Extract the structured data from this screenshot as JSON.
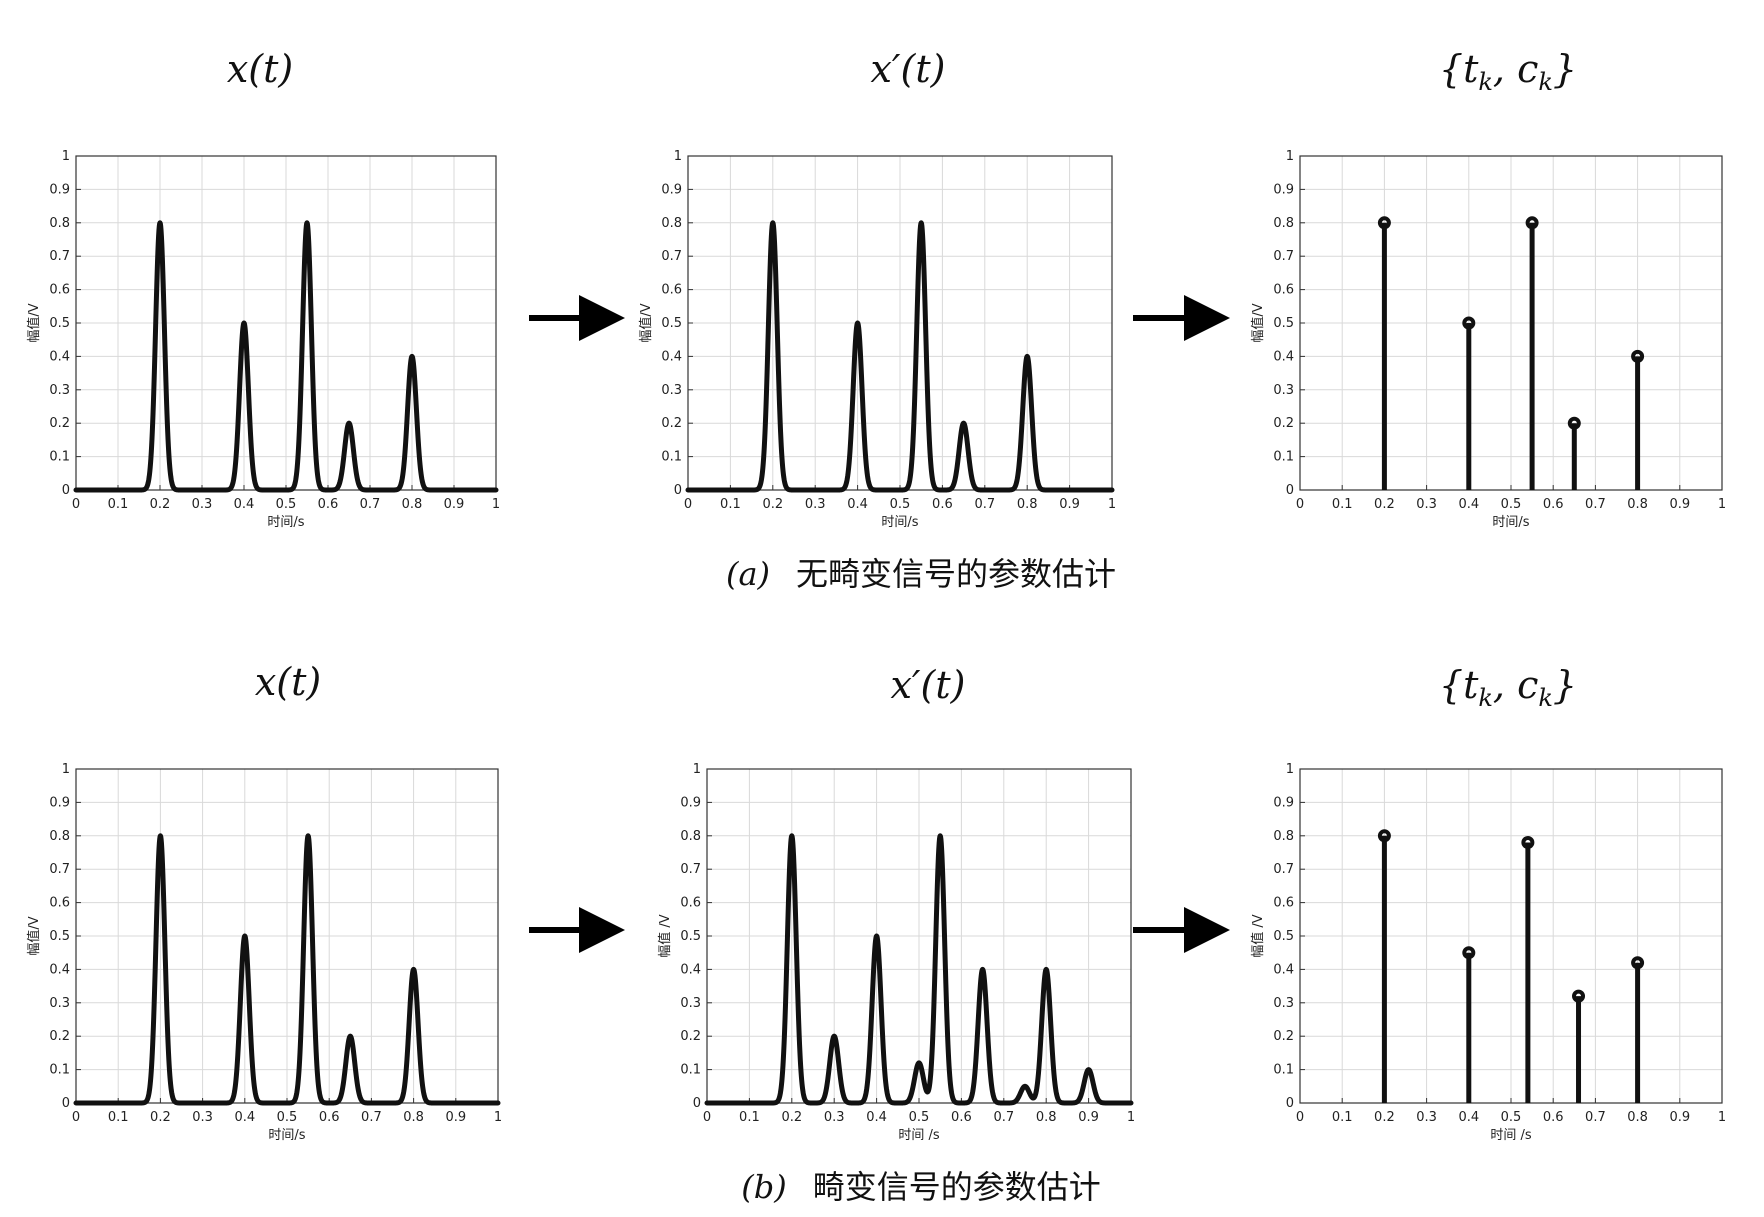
{
  "rows": [
    {
      "caption_label": "(a)",
      "caption_text": "无畸变信号的参数估计",
      "panels": [
        {
          "title": "x(t)",
          "ylabel": "幅值/V",
          "xlabel": "时间/s"
        },
        {
          "title": "x′(t)",
          "ylabel": "幅值/V",
          "xlabel": "时间/s"
        },
        {
          "title": "{t_k, c_k}",
          "ylabel": "幅值/V",
          "xlabel": "时间/s"
        }
      ]
    },
    {
      "caption_label": "(b)",
      "caption_text": "畸变信号的参数估计",
      "panels": [
        {
          "title": "x(t)",
          "ylabel": "幅值/V",
          "xlabel": "时间/s"
        },
        {
          "title": "x′(t)",
          "ylabel": "幅值 /V",
          "xlabel": "时间 /s"
        },
        {
          "title": "{t_k, c_k}",
          "ylabel": "幅值 /V",
          "xlabel": "时间 /s"
        }
      ]
    }
  ],
  "chart_data": [
    {
      "type": "line",
      "title": "x(t)",
      "xlabel": "时间/s",
      "ylabel": "幅值/V",
      "xlim": [
        0,
        1
      ],
      "ylim": [
        0,
        1
      ],
      "x_ticks": [
        0,
        0.1,
        0.2,
        0.3,
        0.4,
        0.5,
        0.6,
        0.7,
        0.8,
        0.9,
        1
      ],
      "y_ticks": [
        0,
        0.1,
        0.2,
        0.3,
        0.4,
        0.5,
        0.6,
        0.7,
        0.8,
        0.9,
        1
      ],
      "grid": true,
      "pulses": [
        {
          "t": 0.2,
          "c": 0.8
        },
        {
          "t": 0.4,
          "c": 0.5
        },
        {
          "t": 0.55,
          "c": 0.8
        },
        {
          "t": 0.65,
          "c": 0.2
        },
        {
          "t": 0.8,
          "c": 0.4
        }
      ]
    },
    {
      "type": "line",
      "title": "x′(t)",
      "xlabel": "时间/s",
      "ylabel": "幅值/V",
      "xlim": [
        0,
        1
      ],
      "ylim": [
        0,
        1
      ],
      "x_ticks": [
        0,
        0.1,
        0.2,
        0.3,
        0.4,
        0.5,
        0.6,
        0.7,
        0.8,
        0.9,
        1
      ],
      "y_ticks": [
        0,
        0.1,
        0.2,
        0.3,
        0.4,
        0.5,
        0.6,
        0.7,
        0.8,
        0.9,
        1
      ],
      "grid": true,
      "pulses": [
        {
          "t": 0.2,
          "c": 0.8
        },
        {
          "t": 0.4,
          "c": 0.5
        },
        {
          "t": 0.55,
          "c": 0.8
        },
        {
          "t": 0.65,
          "c": 0.2
        },
        {
          "t": 0.8,
          "c": 0.4
        }
      ]
    },
    {
      "type": "stem",
      "title": "{t_k, c_k}",
      "xlabel": "时间/s",
      "ylabel": "幅值/V",
      "xlim": [
        0,
        1
      ],
      "ylim": [
        0,
        1
      ],
      "x_ticks": [
        0,
        0.1,
        0.2,
        0.3,
        0.4,
        0.5,
        0.6,
        0.7,
        0.8,
        0.9,
        1
      ],
      "y_ticks": [
        0,
        0.1,
        0.2,
        0.3,
        0.4,
        0.5,
        0.6,
        0.7,
        0.8,
        0.9,
        1
      ],
      "grid": true,
      "points": [
        {
          "t": 0.2,
          "c": 0.8
        },
        {
          "t": 0.4,
          "c": 0.5
        },
        {
          "t": 0.55,
          "c": 0.8
        },
        {
          "t": 0.65,
          "c": 0.2
        },
        {
          "t": 0.8,
          "c": 0.4
        }
      ]
    },
    {
      "type": "line",
      "title": "x(t)",
      "xlabel": "时间/s",
      "ylabel": "幅值/V",
      "xlim": [
        0,
        1
      ],
      "ylim": [
        0,
        1
      ],
      "x_ticks": [
        0,
        0.1,
        0.2,
        0.3,
        0.4,
        0.5,
        0.6,
        0.7,
        0.8,
        0.9,
        1
      ],
      "y_ticks": [
        0,
        0.1,
        0.2,
        0.3,
        0.4,
        0.5,
        0.6,
        0.7,
        0.8,
        0.9,
        1
      ],
      "grid": true,
      "pulses": [
        {
          "t": 0.2,
          "c": 0.8
        },
        {
          "t": 0.4,
          "c": 0.5
        },
        {
          "t": 0.55,
          "c": 0.8
        },
        {
          "t": 0.65,
          "c": 0.2
        },
        {
          "t": 0.8,
          "c": 0.4
        }
      ]
    },
    {
      "type": "line",
      "title": "x′(t)",
      "xlabel": "时间 /s",
      "ylabel": "幅值 /V",
      "xlim": [
        0,
        1
      ],
      "ylim": [
        0,
        1
      ],
      "x_ticks": [
        0,
        0.1,
        0.2,
        0.3,
        0.4,
        0.5,
        0.6,
        0.7,
        0.8,
        0.9,
        1
      ],
      "y_ticks": [
        0,
        0.1,
        0.2,
        0.3,
        0.4,
        0.5,
        0.6,
        0.7,
        0.8,
        0.9,
        1
      ],
      "grid": true,
      "pulses": [
        {
          "t": 0.2,
          "c": 0.8
        },
        {
          "t": 0.3,
          "c": 0.2
        },
        {
          "t": 0.4,
          "c": 0.5
        },
        {
          "t": 0.5,
          "c": 0.12
        },
        {
          "t": 0.55,
          "c": 0.8
        },
        {
          "t": 0.65,
          "c": 0.4
        },
        {
          "t": 0.75,
          "c": 0.05
        },
        {
          "t": 0.8,
          "c": 0.4
        },
        {
          "t": 0.9,
          "c": 0.1
        }
      ]
    },
    {
      "type": "stem",
      "title": "{t_k, c_k}",
      "xlabel": "时间 /s",
      "ylabel": "幅值 /V",
      "xlim": [
        0,
        1
      ],
      "ylim": [
        0,
        1
      ],
      "x_ticks": [
        0,
        0.1,
        0.2,
        0.3,
        0.4,
        0.5,
        0.6,
        0.7,
        0.8,
        0.9,
        1
      ],
      "y_ticks": [
        0,
        0.1,
        0.2,
        0.3,
        0.4,
        0.5,
        0.6,
        0.7,
        0.8,
        0.9,
        1
      ],
      "grid": true,
      "points": [
        {
          "t": 0.2,
          "c": 0.8
        },
        {
          "t": 0.4,
          "c": 0.45
        },
        {
          "t": 0.54,
          "c": 0.78
        },
        {
          "t": 0.66,
          "c": 0.32
        },
        {
          "t": 0.8,
          "c": 0.42
        }
      ]
    }
  ]
}
